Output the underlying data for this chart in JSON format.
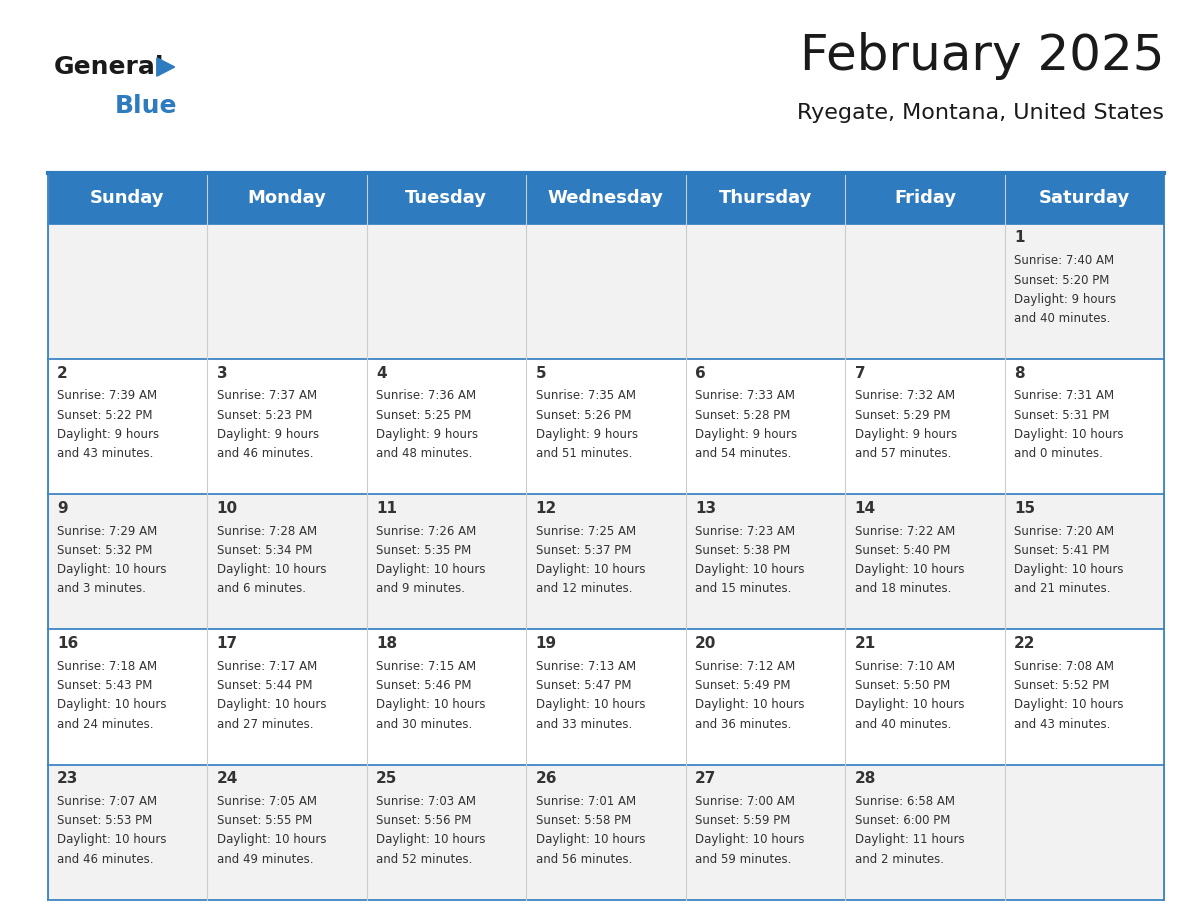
{
  "title": "February 2025",
  "subtitle": "Ryegate, Montana, United States",
  "header_bg": "#2E7BBF",
  "header_text_color": "#FFFFFF",
  "header_font_size": 13,
  "title_font_size": 36,
  "subtitle_font_size": 16,
  "days_of_week": [
    "Sunday",
    "Monday",
    "Tuesday",
    "Wednesday",
    "Thursday",
    "Friday",
    "Saturday"
  ],
  "logo_text1": "General",
  "logo_text2": "Blue",
  "logo_color1": "#1a1a1a",
  "logo_color2": "#2E7BBF",
  "cell_bg_even": "#F2F2F2",
  "cell_bg_odd": "#FFFFFF",
  "text_color": "#333333",
  "cell_text_size": 8.5,
  "day_num_size": 11,
  "weeks": [
    [
      {
        "day": null,
        "sunrise": null,
        "sunset": null,
        "daylight": null
      },
      {
        "day": null,
        "sunrise": null,
        "sunset": null,
        "daylight": null
      },
      {
        "day": null,
        "sunrise": null,
        "sunset": null,
        "daylight": null
      },
      {
        "day": null,
        "sunrise": null,
        "sunset": null,
        "daylight": null
      },
      {
        "day": null,
        "sunrise": null,
        "sunset": null,
        "daylight": null
      },
      {
        "day": null,
        "sunrise": null,
        "sunset": null,
        "daylight": null
      },
      {
        "day": 1,
        "sunrise": "7:40 AM",
        "sunset": "5:20 PM",
        "daylight": "9 hours\nand 40 minutes."
      }
    ],
    [
      {
        "day": 2,
        "sunrise": "7:39 AM",
        "sunset": "5:22 PM",
        "daylight": "9 hours\nand 43 minutes."
      },
      {
        "day": 3,
        "sunrise": "7:37 AM",
        "sunset": "5:23 PM",
        "daylight": "9 hours\nand 46 minutes."
      },
      {
        "day": 4,
        "sunrise": "7:36 AM",
        "sunset": "5:25 PM",
        "daylight": "9 hours\nand 48 minutes."
      },
      {
        "day": 5,
        "sunrise": "7:35 AM",
        "sunset": "5:26 PM",
        "daylight": "9 hours\nand 51 minutes."
      },
      {
        "day": 6,
        "sunrise": "7:33 AM",
        "sunset": "5:28 PM",
        "daylight": "9 hours\nand 54 minutes."
      },
      {
        "day": 7,
        "sunrise": "7:32 AM",
        "sunset": "5:29 PM",
        "daylight": "9 hours\nand 57 minutes."
      },
      {
        "day": 8,
        "sunrise": "7:31 AM",
        "sunset": "5:31 PM",
        "daylight": "10 hours\nand 0 minutes."
      }
    ],
    [
      {
        "day": 9,
        "sunrise": "7:29 AM",
        "sunset": "5:32 PM",
        "daylight": "10 hours\nand 3 minutes."
      },
      {
        "day": 10,
        "sunrise": "7:28 AM",
        "sunset": "5:34 PM",
        "daylight": "10 hours\nand 6 minutes."
      },
      {
        "day": 11,
        "sunrise": "7:26 AM",
        "sunset": "5:35 PM",
        "daylight": "10 hours\nand 9 minutes."
      },
      {
        "day": 12,
        "sunrise": "7:25 AM",
        "sunset": "5:37 PM",
        "daylight": "10 hours\nand 12 minutes."
      },
      {
        "day": 13,
        "sunrise": "7:23 AM",
        "sunset": "5:38 PM",
        "daylight": "10 hours\nand 15 minutes."
      },
      {
        "day": 14,
        "sunrise": "7:22 AM",
        "sunset": "5:40 PM",
        "daylight": "10 hours\nand 18 minutes."
      },
      {
        "day": 15,
        "sunrise": "7:20 AM",
        "sunset": "5:41 PM",
        "daylight": "10 hours\nand 21 minutes."
      }
    ],
    [
      {
        "day": 16,
        "sunrise": "7:18 AM",
        "sunset": "5:43 PM",
        "daylight": "10 hours\nand 24 minutes."
      },
      {
        "day": 17,
        "sunrise": "7:17 AM",
        "sunset": "5:44 PM",
        "daylight": "10 hours\nand 27 minutes."
      },
      {
        "day": 18,
        "sunrise": "7:15 AM",
        "sunset": "5:46 PM",
        "daylight": "10 hours\nand 30 minutes."
      },
      {
        "day": 19,
        "sunrise": "7:13 AM",
        "sunset": "5:47 PM",
        "daylight": "10 hours\nand 33 minutes."
      },
      {
        "day": 20,
        "sunrise": "7:12 AM",
        "sunset": "5:49 PM",
        "daylight": "10 hours\nand 36 minutes."
      },
      {
        "day": 21,
        "sunrise": "7:10 AM",
        "sunset": "5:50 PM",
        "daylight": "10 hours\nand 40 minutes."
      },
      {
        "day": 22,
        "sunrise": "7:08 AM",
        "sunset": "5:52 PM",
        "daylight": "10 hours\nand 43 minutes."
      }
    ],
    [
      {
        "day": 23,
        "sunrise": "7:07 AM",
        "sunset": "5:53 PM",
        "daylight": "10 hours\nand 46 minutes."
      },
      {
        "day": 24,
        "sunrise": "7:05 AM",
        "sunset": "5:55 PM",
        "daylight": "10 hours\nand 49 minutes."
      },
      {
        "day": 25,
        "sunrise": "7:03 AM",
        "sunset": "5:56 PM",
        "daylight": "10 hours\nand 52 minutes."
      },
      {
        "day": 26,
        "sunrise": "7:01 AM",
        "sunset": "5:58 PM",
        "daylight": "10 hours\nand 56 minutes."
      },
      {
        "day": 27,
        "sunrise": "7:00 AM",
        "sunset": "5:59 PM",
        "daylight": "10 hours\nand 59 minutes."
      },
      {
        "day": 28,
        "sunrise": "6:58 AM",
        "sunset": "6:00 PM",
        "daylight": "11 hours\nand 2 minutes."
      },
      {
        "day": null,
        "sunrise": null,
        "sunset": null,
        "daylight": null
      }
    ]
  ]
}
